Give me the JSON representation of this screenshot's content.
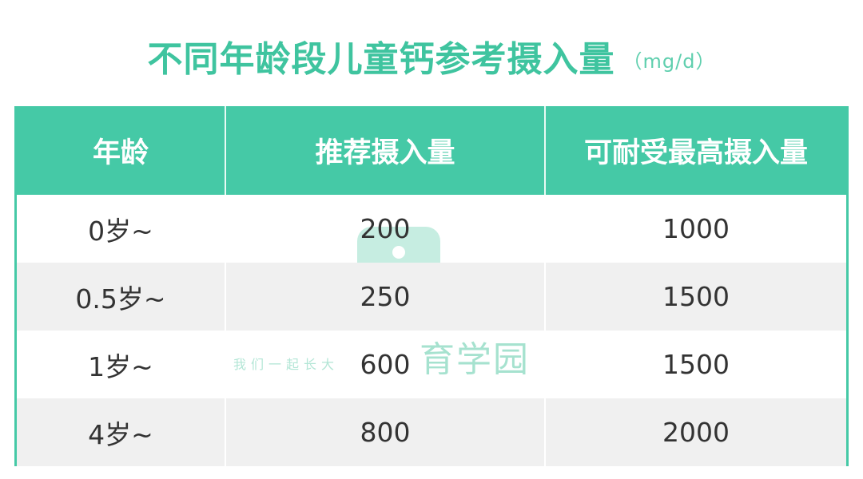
{
  "title": "不同年龄段儿童钙参考摄入量",
  "unit": "（mg/d）",
  "colors": {
    "accent": "#45c9a6",
    "title": "#3fc49f",
    "alt_row": "#f0f0f0"
  },
  "table": {
    "headers": [
      "年龄",
      "推荐摄入量",
      "可耐受最高摄入量"
    ],
    "rows": [
      [
        "0岁~",
        "200",
        "1000"
      ],
      [
        "0.5岁~",
        "250",
        "1500"
      ],
      [
        "1岁~",
        "600",
        "1500"
      ],
      [
        "4岁~",
        "800",
        "2000"
      ]
    ]
  },
  "watermark": {
    "name": "育学园",
    "slogan": "我们一起长大"
  }
}
